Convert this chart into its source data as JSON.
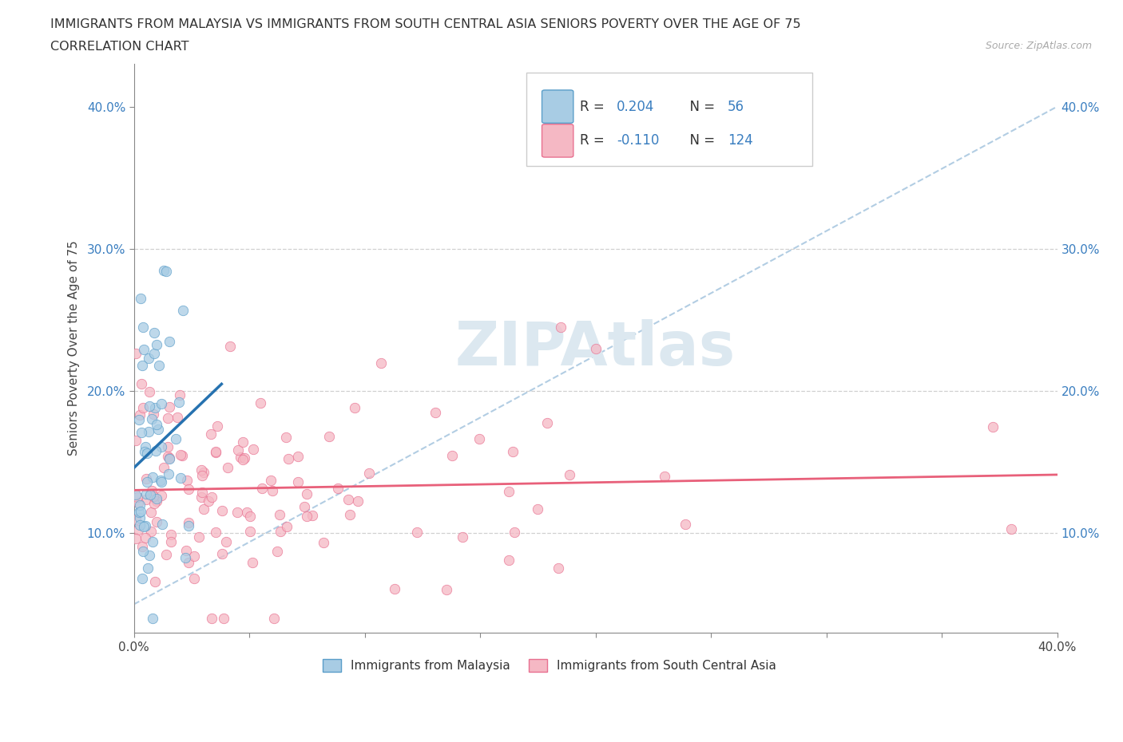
{
  "title_line1": "IMMIGRANTS FROM MALAYSIA VS IMMIGRANTS FROM SOUTH CENTRAL ASIA SENIORS POVERTY OVER THE AGE OF 75",
  "title_line2": "CORRELATION CHART",
  "source_text": "Source: ZipAtlas.com",
  "ylabel": "Seniors Poverty Over the Age of 75",
  "xmin": 0.0,
  "xmax": 0.4,
  "ymin": 0.03,
  "ymax": 0.43,
  "ytick_positions": [
    0.1,
    0.2,
    0.3,
    0.4
  ],
  "ytick_labels": [
    "10.0%",
    "20.0%",
    "30.0%",
    "40.0%"
  ],
  "malaysia_color": "#a8cce4",
  "malaysia_edge": "#5a9ec9",
  "sca_color": "#f5b8c4",
  "sca_edge": "#e87090",
  "trend_malaysia_color": "#2672b0",
  "trend_sca_color": "#e8607a",
  "diag_color": "#aac8e0",
  "R_malaysia": 0.204,
  "N_malaysia": 56,
  "R_sca": -0.11,
  "N_sca": 124,
  "legend_R_color": "#3a7ec0",
  "grid_color": "#d0d0d0",
  "background_color": "#ffffff",
  "watermark_color": "#dce8f0"
}
